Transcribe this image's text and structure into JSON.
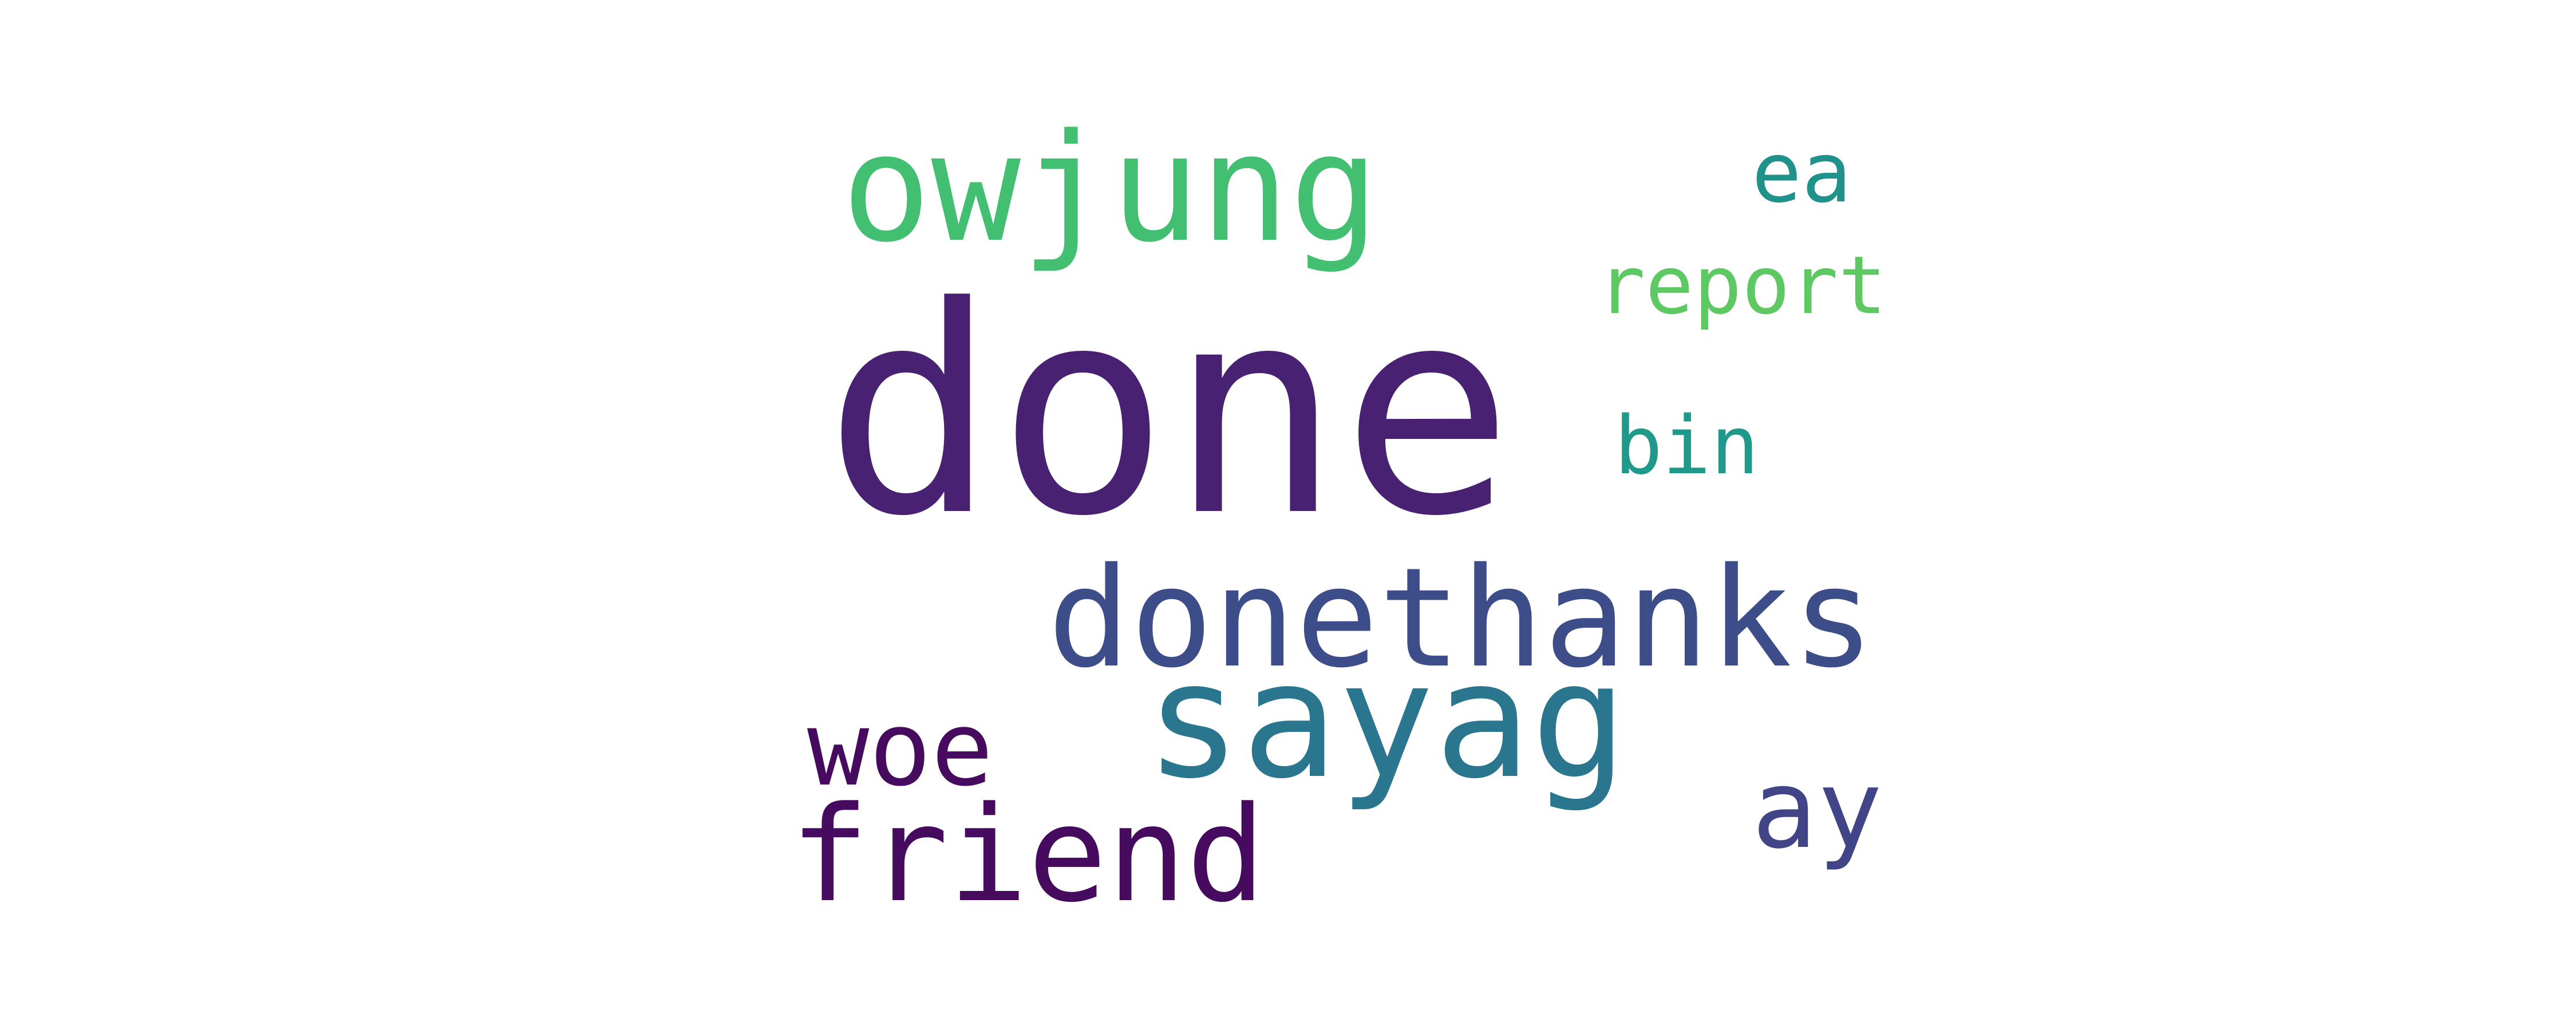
{
  "words": {
    "done": {
      "text": "done",
      "color": "#482172"
    },
    "owjung": {
      "text": "owjung",
      "color": "#43bf71"
    },
    "donethanks": {
      "text": "donethanks",
      "color": "#3d4d8a"
    },
    "sayag": {
      "text": "sayag",
      "color": "#2a768e"
    },
    "woe": {
      "text": "woe",
      "color": "#460b5e"
    },
    "friend": {
      "text": "friend",
      "color": "#460b5e"
    },
    "ea": {
      "text": "ea",
      "color": "#20928c"
    },
    "report": {
      "text": "report",
      "color": "#5ec962"
    },
    "bin": {
      "text": "bin",
      "color": "#1f9a8a"
    },
    "ay": {
      "text": "ay",
      "color": "#414487"
    }
  },
  "background_color": "#ffffff"
}
